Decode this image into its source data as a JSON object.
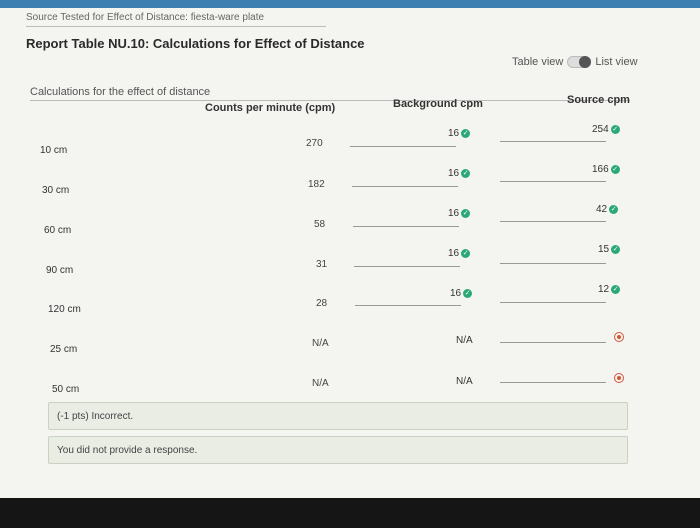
{
  "header": {
    "source_text": "Source Tested for Effect of Distance: fiesta-ware plate",
    "title": "Report Table NU.10: Calculations for Effect of Distance",
    "table_view_label": "Table view",
    "list_view_label": "List view"
  },
  "table": {
    "caption": "Calculations for the effect of distance",
    "col_counts": "Counts per minute (cpm)",
    "col_background": "Background cpm",
    "col_source": "Source cpm",
    "rows": [
      {
        "label": "10 cm",
        "counts": "270",
        "background": "16",
        "bg_status": "correct",
        "source": "254",
        "src_status": "correct"
      },
      {
        "label": "30 cm",
        "counts": "182",
        "background": "16",
        "bg_status": "correct",
        "source": "166",
        "src_status": "correct"
      },
      {
        "label": "60 cm",
        "counts": "58",
        "background": "16",
        "bg_status": "correct",
        "source": "42",
        "src_status": "correct"
      },
      {
        "label": "90 cm",
        "counts": "31",
        "background": "16",
        "bg_status": "correct",
        "source": "15",
        "src_status": "correct"
      },
      {
        "label": "120 cm",
        "counts": "28",
        "background": "16",
        "bg_status": "correct",
        "source": "12",
        "src_status": "correct"
      },
      {
        "label": "25 cm",
        "counts": "N/A",
        "background": "N/A",
        "bg_status": "none",
        "source": "",
        "src_status": "incorrect"
      },
      {
        "label": "50 cm",
        "counts": "N/A",
        "background": "N/A",
        "bg_status": "none",
        "source": "",
        "src_status": "incorrect"
      }
    ]
  },
  "feedback": {
    "score": "(-1 pts) Incorrect.",
    "response": "You did not provide a response."
  },
  "colors": {
    "correct": "#2aa876",
    "incorrect": "#d4553a",
    "topbar": "#3c7fb0"
  }
}
